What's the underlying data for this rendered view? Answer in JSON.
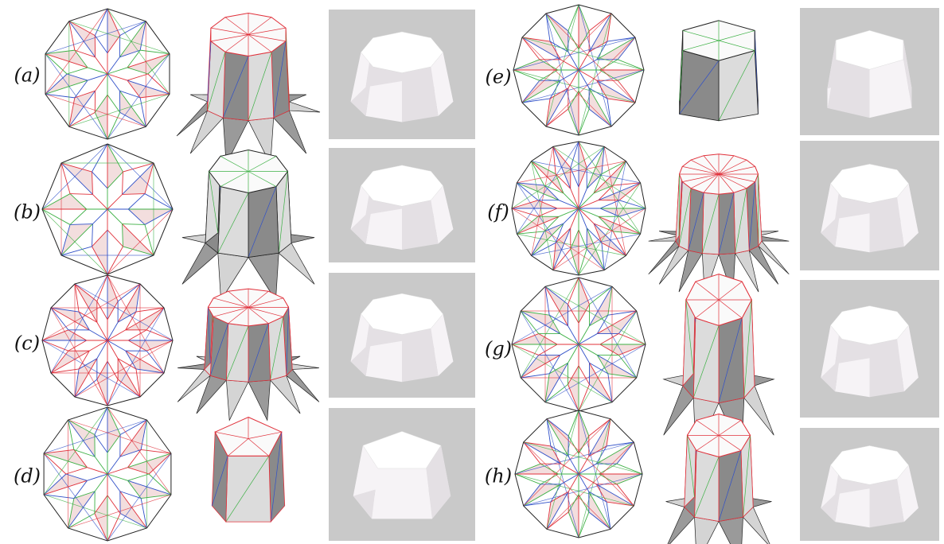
{
  "labels": [
    "(a)",
    "(b)",
    "(c)",
    "(d)",
    "(e)",
    "(f)",
    "(g)",
    "(h)"
  ]
}
